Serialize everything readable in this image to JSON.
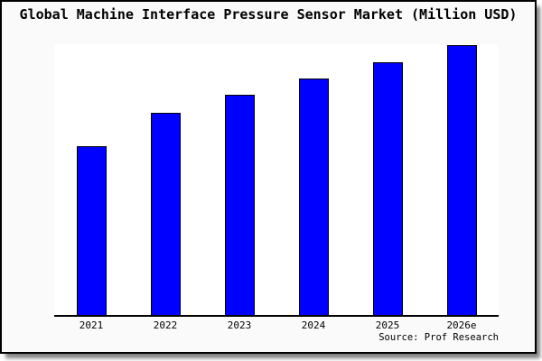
{
  "chart": {
    "colors": {
      "bar_fill": "#0000ff",
      "bar_border": "#000000",
      "axis": "#000000",
      "frame_border": "#000000",
      "frame_background": "#fafafa",
      "plot_background": "#ffffff",
      "text": "#000000"
    }
  },
  "chart_data": {
    "type": "bar",
    "title": "Global Machine Interface Pressure Sensor Market (Million USD)",
    "categories": [
      "2021",
      "2022",
      "2023",
      "2024",
      "2025",
      "2026e"
    ],
    "values": [
      62.5,
      75,
      81.5,
      87.7,
      93.7,
      100
    ],
    "value_note": "No y-axis ticks or value labels shown; values estimated from bar heights as relative index with 2026e = 100",
    "xlabel": "",
    "ylabel": "",
    "ylim": [
      0,
      100.3
    ],
    "grid": false,
    "legend": false,
    "bar_color": "#0000ff",
    "source": "Source: Prof Research"
  }
}
